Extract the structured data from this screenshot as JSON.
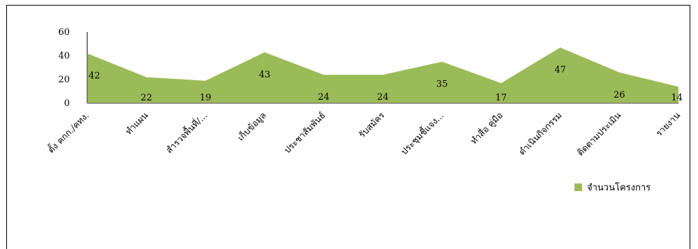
{
  "chart_data": {
    "type": "area",
    "title": "",
    "xlabel": "",
    "ylabel": "",
    "ylim": [
      0,
      60
    ],
    "yticks": [
      0,
      20,
      40,
      60
    ],
    "grid": false,
    "legend_placement": "right",
    "categories": [
      "ตั้ง คกก./คทง.",
      "ทำแผน",
      "สำรวจพื้นที่/...",
      "เก็บข้อมูล",
      "ประชาสัมพันธ์",
      "รับสมัคร",
      "ประชุมชี้แจง...",
      "ทำสื่อ คู่มือ",
      "ดำเนินกิจกรรม",
      "ติดตามประเมิน",
      "รายงาน"
    ],
    "series": [
      {
        "name": "จำนวนโครงการ",
        "color": "#9bbb59",
        "values": [
          42,
          22,
          19,
          43,
          24,
          24,
          35,
          17,
          47,
          26,
          14
        ]
      }
    ]
  }
}
